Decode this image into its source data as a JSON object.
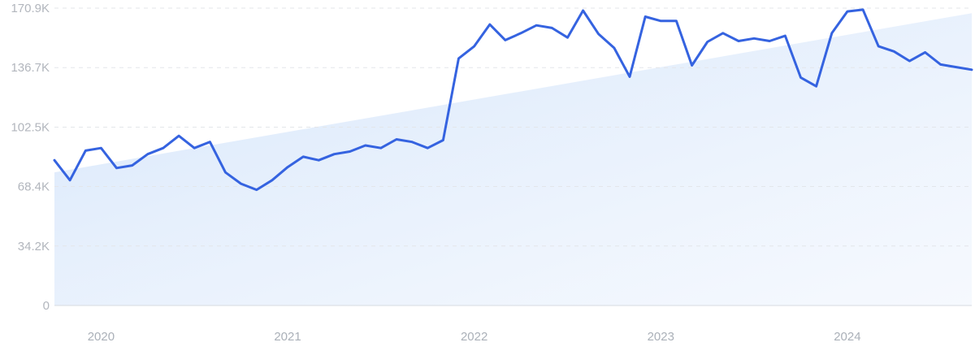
{
  "chart_data": {
    "type": "line",
    "title": "",
    "xlabel": "",
    "ylabel": "",
    "ylim": [
      0,
      170900
    ],
    "y_ticks": [
      0,
      34200,
      68400,
      102500,
      136700,
      170900
    ],
    "y_tick_labels": [
      "0",
      "34.2K",
      "68.4K",
      "102.5K",
      "136.7K",
      "170.9K"
    ],
    "x_tick_labels": [
      "2020",
      "2021",
      "2022",
      "2023",
      "2024"
    ],
    "x_ticks": [
      "2020-01",
      "2021-01",
      "2022-01",
      "2023-01",
      "2024-01"
    ],
    "grid": true,
    "series": [
      {
        "color": "#3563e0",
        "x": [
          "2019-10",
          "2019-11",
          "2019-12",
          "2020-01",
          "2020-02",
          "2020-03",
          "2020-04",
          "2020-05",
          "2020-06",
          "2020-07",
          "2020-08",
          "2020-09",
          "2020-10",
          "2020-11",
          "2020-12",
          "2021-01",
          "2021-02",
          "2021-03",
          "2021-04",
          "2021-05",
          "2021-06",
          "2021-07",
          "2021-08",
          "2021-09",
          "2021-10",
          "2021-11",
          "2021-12",
          "2022-01",
          "2022-02",
          "2022-03",
          "2022-04",
          "2022-05",
          "2022-06",
          "2022-07",
          "2022-08",
          "2022-09",
          "2022-10",
          "2022-11",
          "2022-12",
          "2023-01",
          "2023-02",
          "2023-03",
          "2023-04",
          "2023-05",
          "2023-06",
          "2023-07",
          "2023-08",
          "2023-09",
          "2023-10",
          "2023-11",
          "2023-12",
          "2024-01",
          "2024-02",
          "2024-03",
          "2024-04",
          "2024-05",
          "2024-06",
          "2024-07",
          "2024-08",
          "2024-09"
        ],
        "values": [
          83500,
          72000,
          89000,
          90500,
          79000,
          80500,
          87000,
          90500,
          97500,
          90500,
          94000,
          76500,
          70000,
          66500,
          72000,
          79500,
          85500,
          83500,
          87000,
          88500,
          92000,
          90500,
          95500,
          94000,
          90500,
          95000,
          142000,
          149000,
          161500,
          152500,
          156500,
          161000,
          159500,
          154000,
          169500,
          156000,
          148000,
          131500,
          166000,
          163500,
          163500,
          138000,
          151500,
          156500,
          152000,
          153500,
          152000,
          155000,
          131000,
          126000,
          156500,
          169000,
          170000,
          149000,
          146000,
          140500,
          145500,
          138500,
          137000,
          135500
        ]
      },
      {
        "type": "area",
        "color": "#dbe8fb",
        "x": [
          "2019-10",
          "2024-09"
        ],
        "values": [
          76500,
          168000
        ]
      }
    ]
  }
}
